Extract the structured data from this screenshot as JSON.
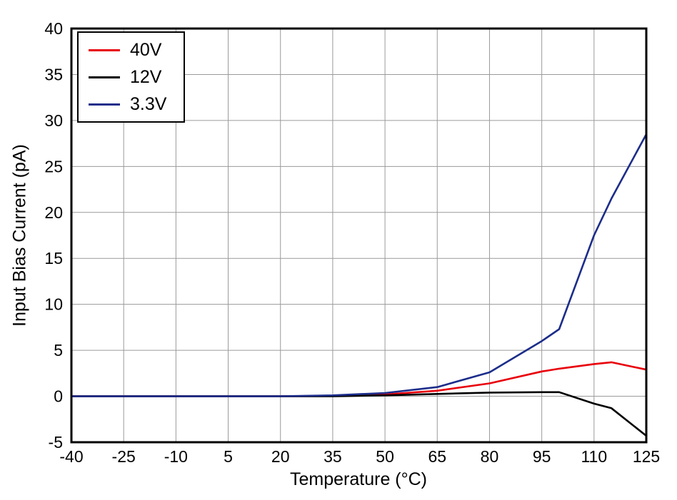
{
  "chart_data": {
    "type": "line",
    "title": "",
    "xlabel": "Temperature (°C)",
    "ylabel": "Input Bias Current (pA)",
    "xlim": [
      -40,
      125
    ],
    "ylim": [
      -5,
      40
    ],
    "xticks": [
      -40,
      -25,
      -10,
      5,
      20,
      35,
      50,
      65,
      80,
      95,
      110,
      125
    ],
    "yticks": [
      -5,
      0,
      5,
      10,
      15,
      20,
      25,
      30,
      35,
      40
    ],
    "grid": true,
    "legend_position": "top-left",
    "x": [
      -40,
      -25,
      -10,
      5,
      20,
      35,
      50,
      65,
      80,
      95,
      100,
      110,
      115,
      125
    ],
    "series": [
      {
        "name": "40V",
        "color": "#e8000b",
        "values": [
          0,
          0,
          0,
          0,
          0,
          0.05,
          0.2,
          0.6,
          1.4,
          2.7,
          3.0,
          3.5,
          3.7,
          2.9
        ]
      },
      {
        "name": "12V",
        "color": "#000000",
        "values": [
          0,
          0,
          0,
          0,
          0,
          0,
          0.1,
          0.25,
          0.4,
          0.45,
          0.45,
          -0.8,
          -1.3,
          -4.3
        ]
      },
      {
        "name": "3.3V",
        "color": "#1c2d8a",
        "values": [
          0,
          0,
          0,
          0,
          0,
          0.1,
          0.35,
          1.0,
          2.6,
          6.0,
          7.3,
          17.5,
          21.5,
          28.5
        ]
      }
    ],
    "axis_color": "#000000",
    "grid_color": "#9a9a9a",
    "background_color": "#ffffff"
  }
}
